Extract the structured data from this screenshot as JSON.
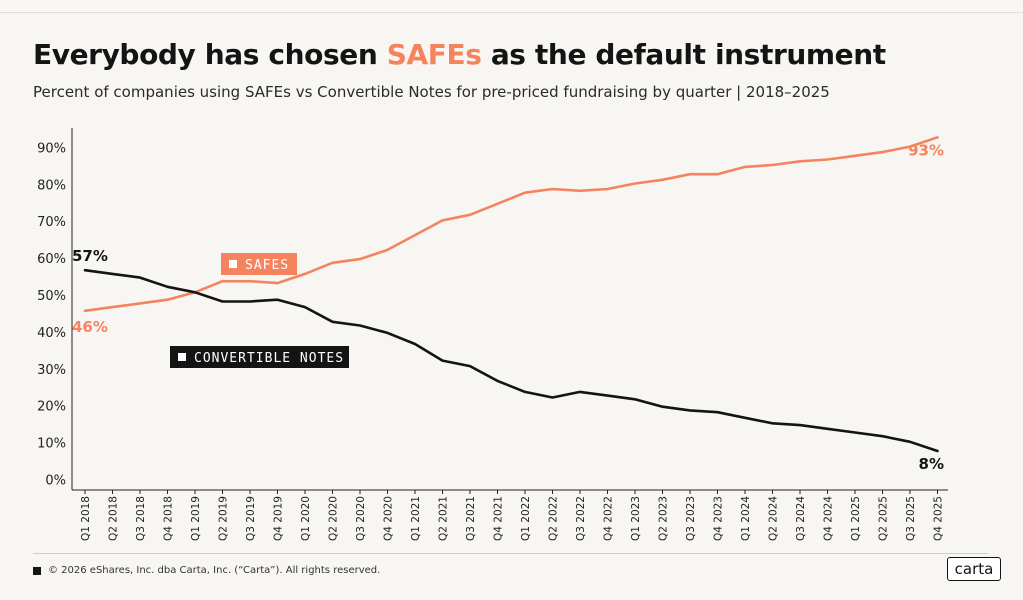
{
  "header": {
    "title_before": "Everybody has chosen ",
    "title_accent": "SAFEs",
    "title_after": " as the default instrument",
    "subtitle": "Percent of companies using SAFEs vs Convertible Notes for pre-priced fundraising by quarter | 2018–2025"
  },
  "colors": {
    "safes": "#f5835e",
    "notes": "#141414",
    "background": "#f8f6f3"
  },
  "chart_data": {
    "type": "line",
    "categories": [
      "Q1 2018",
      "Q2 2018",
      "Q3 2018",
      "Q4 2018",
      "Q1 2019",
      "Q2 2019",
      "Q3 2019",
      "Q4 2019",
      "Q1 2020",
      "Q2 2020",
      "Q3 2020",
      "Q4 2020",
      "Q1 2021",
      "Q2 2021",
      "Q3 2021",
      "Q4 2021",
      "Q1 2022",
      "Q2 2022",
      "Q3 2022",
      "Q4 2022",
      "Q1 2023",
      "Q2 2023",
      "Q3 2023",
      "Q4 2023",
      "Q1 2024",
      "Q2 2024",
      "Q3 2024",
      "Q4 2024",
      "Q1 2025",
      "Q2 2025",
      "Q3 2025",
      "Q4 2025"
    ],
    "series": [
      {
        "name": "SAFES",
        "color": "#f5835e",
        "values": [
          46,
          47,
          48,
          49,
          51,
          54,
          54,
          53.5,
          56,
          59,
          60,
          62.5,
          66.5,
          70.5,
          72,
          75,
          78,
          79,
          78.5,
          79,
          80.5,
          81.5,
          83,
          83,
          85,
          85.5,
          86.5,
          87,
          88,
          89,
          90.5,
          93
        ]
      },
      {
        "name": "CONVERTIBLE NOTES",
        "color": "#141414",
        "values": [
          57,
          56,
          55,
          52.5,
          51,
          48.5,
          48.5,
          49,
          47,
          43,
          42,
          40,
          37,
          32.5,
          31,
          27,
          24,
          22.5,
          24,
          23,
          22,
          20,
          19,
          18.5,
          17,
          15.5,
          15,
          14,
          13,
          12,
          10.5,
          8
        ]
      }
    ],
    "end_labels": {
      "safes_start": "46%",
      "safes_end": "93%",
      "notes_start": "57%",
      "notes_end": "8%"
    },
    "y_ticks": [
      0,
      10,
      20,
      30,
      40,
      50,
      60,
      70,
      80,
      90
    ],
    "y_tick_labels": [
      "0%",
      "10%",
      "20%",
      "30%",
      "40%",
      "50%",
      "60%",
      "70%",
      "80%",
      "90%"
    ],
    "ylim": [
      0,
      100
    ],
    "grid": false,
    "legend": [
      {
        "label": "SAFES",
        "placement": "inline near Q3 2019 above SAFE line"
      },
      {
        "label": "CONVERTIBLE NOTES",
        "placement": "inline near Q4 2019 below lines"
      }
    ]
  },
  "footer": {
    "copyright": "© 2026 eShares, Inc. dba Carta, Inc. (“Carta”). All rights reserved.",
    "logo": "carta"
  }
}
